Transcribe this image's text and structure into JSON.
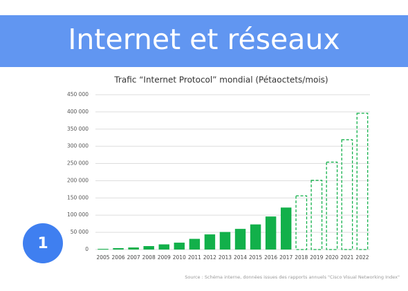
{
  "header": {
    "title": "Internet et réseaux"
  },
  "badge": {
    "label": "1"
  },
  "source": "Source : Schéma interne, données issues des rapports annuels \"Cisco Visual Networking Index\"",
  "chart_data": {
    "type": "bar",
    "title": "Trafic “Internet Protocol” mondial (Pétaoctets/mois)",
    "categories": [
      "2005",
      "2006",
      "2007",
      "2008",
      "2009",
      "2010",
      "2011",
      "2012",
      "2013",
      "2014",
      "2015",
      "2016",
      "2017",
      "2018",
      "2019",
      "2020",
      "2021",
      "2022"
    ],
    "values": [
      2000,
      4000,
      6000,
      10000,
      15000,
      20000,
      31000,
      44000,
      51000,
      60000,
      73000,
      96000,
      122000,
      156000,
      201000,
      254000,
      319000,
      396000
    ],
    "bar_styles": [
      "solid",
      "solid",
      "solid",
      "solid",
      "solid",
      "solid",
      "solid",
      "solid",
      "solid",
      "solid",
      "solid",
      "solid",
      "solid",
      "dashed",
      "dashed",
      "dashed",
      "dashed",
      "dashed"
    ],
    "color": "#12b04a",
    "ylim": [
      0,
      450000
    ],
    "yticks": [
      0,
      {
        "value": 50000,
        "label": "50 000"
      },
      {
        "value": 100000,
        "label": "100 000"
      },
      {
        "value": 150000,
        "label": "150 000"
      },
      {
        "value": 200000,
        "label": "200 000"
      },
      {
        "value": 250000,
        "label": "250 000"
      },
      {
        "value": 300000,
        "label": "300 000"
      },
      {
        "value": 350000,
        "label": "350 000"
      },
      {
        "value": 400000,
        "label": "400 000"
      },
      {
        "value": 450000,
        "label": "450 000"
      }
    ],
    "grid": true
  }
}
